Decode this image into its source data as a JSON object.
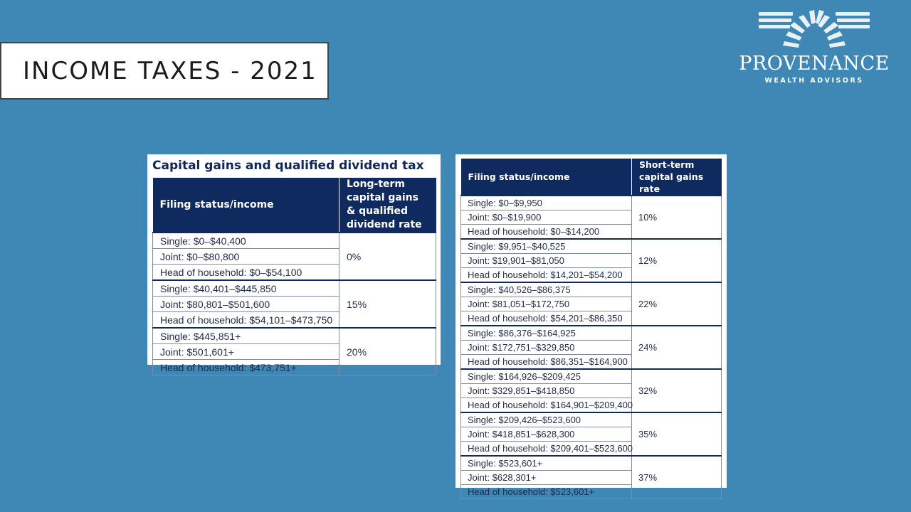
{
  "slide": {
    "title": "INCOME TAXES - 2021"
  },
  "logo": {
    "name": "PROVENANCE",
    "tagline": "WEALTH ADVISORS"
  },
  "capital_gains_table": {
    "title": "Capital gains and qualified dividend tax",
    "headers": [
      "Filing status/income",
      "Long-term capital gains & qualified dividend rate"
    ],
    "groups": [
      {
        "rate": "0%",
        "rows": [
          "Single: $0–$40,400",
          "Joint: $0–$80,800",
          "Head of household: $0–$54,100"
        ]
      },
      {
        "rate": "15%",
        "rows": [
          "Single: $40,401–$445,850",
          "Joint: $80,801–$501,600",
          "Head of household: $54,101–$473,750"
        ]
      },
      {
        "rate": "20%",
        "rows": [
          "Single: $445,851+",
          "Joint: $501,601+",
          "Head of household: $473,751+"
        ]
      }
    ]
  },
  "short_term_table": {
    "headers": [
      "Filing status/income",
      "Short-term capital gains rate"
    ],
    "groups": [
      {
        "rate": "10%",
        "rows": [
          "Single: $0–$9,950",
          "Joint: $0–$19,900",
          "Head of household: $0–$14,200"
        ]
      },
      {
        "rate": "12%",
        "rows": [
          "Single: $9,951–$40,525",
          "Joint: $19,901–$81,050",
          "Head of household: $14,201–$54,200"
        ]
      },
      {
        "rate": "22%",
        "rows": [
          "Single: $40,526–$86,375",
          "Joint: $81,051–$172,750",
          "Head of household: $54,201–$86,350"
        ]
      },
      {
        "rate": "24%",
        "rows": [
          "Single: $86,376–$164,925",
          "Joint: $172,751–$329,850",
          "Head of household: $86,351–$164,900"
        ]
      },
      {
        "rate": "32%",
        "rows": [
          "Single: $164,926–$209,425",
          "Joint: $329,851–$418,850",
          "Head of household: $164,901–$209,400"
        ]
      },
      {
        "rate": "35%",
        "rows": [
          "Single: $209,426–$523,600",
          "Joint: $418,851–$628,300",
          "Head of household: $209,401–$523,600"
        ]
      },
      {
        "rate": "37%",
        "rows": [
          "Single: $523,601+",
          "Joint: $628,301+",
          "Head of household: $523,601+"
        ]
      }
    ]
  }
}
